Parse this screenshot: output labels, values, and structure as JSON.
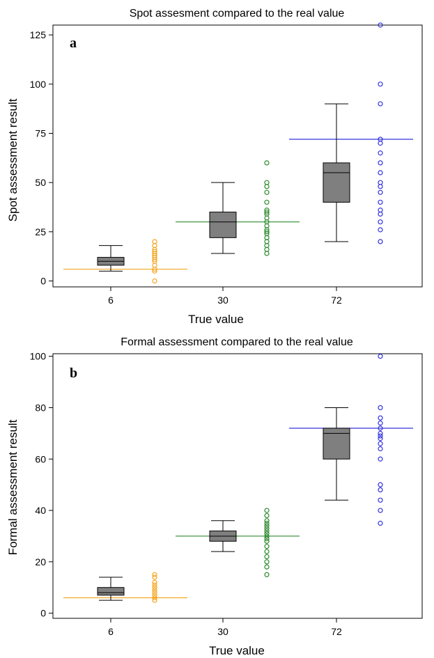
{
  "chart_data": [
    {
      "type": "box",
      "panel_label": "a",
      "title": "Spot assesment compared to the real value",
      "xlabel": "True value",
      "ylabel": "Spot assessment result",
      "categories": [
        "6",
        "30",
        "72"
      ],
      "yticks": [
        0,
        25,
        50,
        75,
        100,
        125
      ],
      "ylim": [
        -3,
        130
      ],
      "grid": false,
      "boxes": [
        {
          "category": "6",
          "min": 5,
          "q1": 8,
          "median": 10,
          "q3": 12,
          "max": 18
        },
        {
          "category": "30",
          "min": 14,
          "q1": 22,
          "median": 30,
          "q3": 35,
          "max": 50
        },
        {
          "category": "72",
          "min": 20,
          "q1": 40,
          "median": 55,
          "q3": 60,
          "max": 90
        }
      ],
      "points": [
        {
          "category": "6",
          "color": "#f5a623",
          "values": [
            0,
            5,
            6,
            8,
            10,
            11,
            12,
            13,
            14,
            15,
            16,
            18,
            20
          ]
        },
        {
          "category": "30",
          "color": "#2e8b2e",
          "values": [
            14,
            16,
            18,
            20,
            22,
            24,
            25,
            26,
            28,
            30,
            32,
            34,
            35,
            36,
            40,
            45,
            48,
            50,
            60
          ]
        },
        {
          "category": "72",
          "color": "#3333dd",
          "values": [
            20,
            26,
            30,
            34,
            36,
            40,
            45,
            48,
            50,
            55,
            60,
            65,
            70,
            72,
            90,
            100,
            130
          ]
        }
      ],
      "reference_lines": [
        {
          "category": "6",
          "value": 6,
          "color": "#f5a623"
        },
        {
          "category": "30",
          "value": 30,
          "color": "#2e8b2e"
        },
        {
          "category": "72",
          "value": 72,
          "color": "#3333dd"
        }
      ]
    },
    {
      "type": "box",
      "panel_label": "b",
      "title": "Formal assessment compared to the real value",
      "xlabel": "True value",
      "ylabel": "Formal assessment result",
      "categories": [
        "6",
        "30",
        "72"
      ],
      "yticks": [
        0,
        20,
        40,
        60,
        80,
        100
      ],
      "ylim": [
        -2,
        101
      ],
      "grid": false,
      "boxes": [
        {
          "category": "6",
          "min": 5,
          "q1": 7,
          "median": 8,
          "q3": 10,
          "max": 14
        },
        {
          "category": "30",
          "min": 24,
          "q1": 28,
          "median": 30,
          "q3": 32,
          "max": 36
        },
        {
          "category": "72",
          "min": 44,
          "q1": 60,
          "median": 70,
          "q3": 72,
          "max": 80
        }
      ],
      "points": [
        {
          "category": "6",
          "color": "#f5a623",
          "values": [
            5,
            6,
            7,
            8,
            9,
            10,
            11,
            12,
            14,
            15
          ]
        },
        {
          "category": "30",
          "color": "#2e8b2e",
          "values": [
            15,
            18,
            20,
            22,
            24,
            26,
            28,
            29,
            30,
            31,
            32,
            33,
            34,
            35,
            36,
            38,
            40
          ]
        },
        {
          "category": "72",
          "color": "#3333dd",
          "values": [
            35,
            40,
            44,
            48,
            50,
            60,
            64,
            66,
            68,
            69,
            70,
            72,
            74,
            76,
            80,
            100
          ]
        }
      ],
      "reference_lines": [
        {
          "category": "6",
          "value": 6,
          "color": "#f5a623"
        },
        {
          "category": "30",
          "value": 30,
          "color": "#2e8b2e"
        },
        {
          "category": "72",
          "value": 72,
          "color": "#3333dd"
        }
      ]
    }
  ]
}
